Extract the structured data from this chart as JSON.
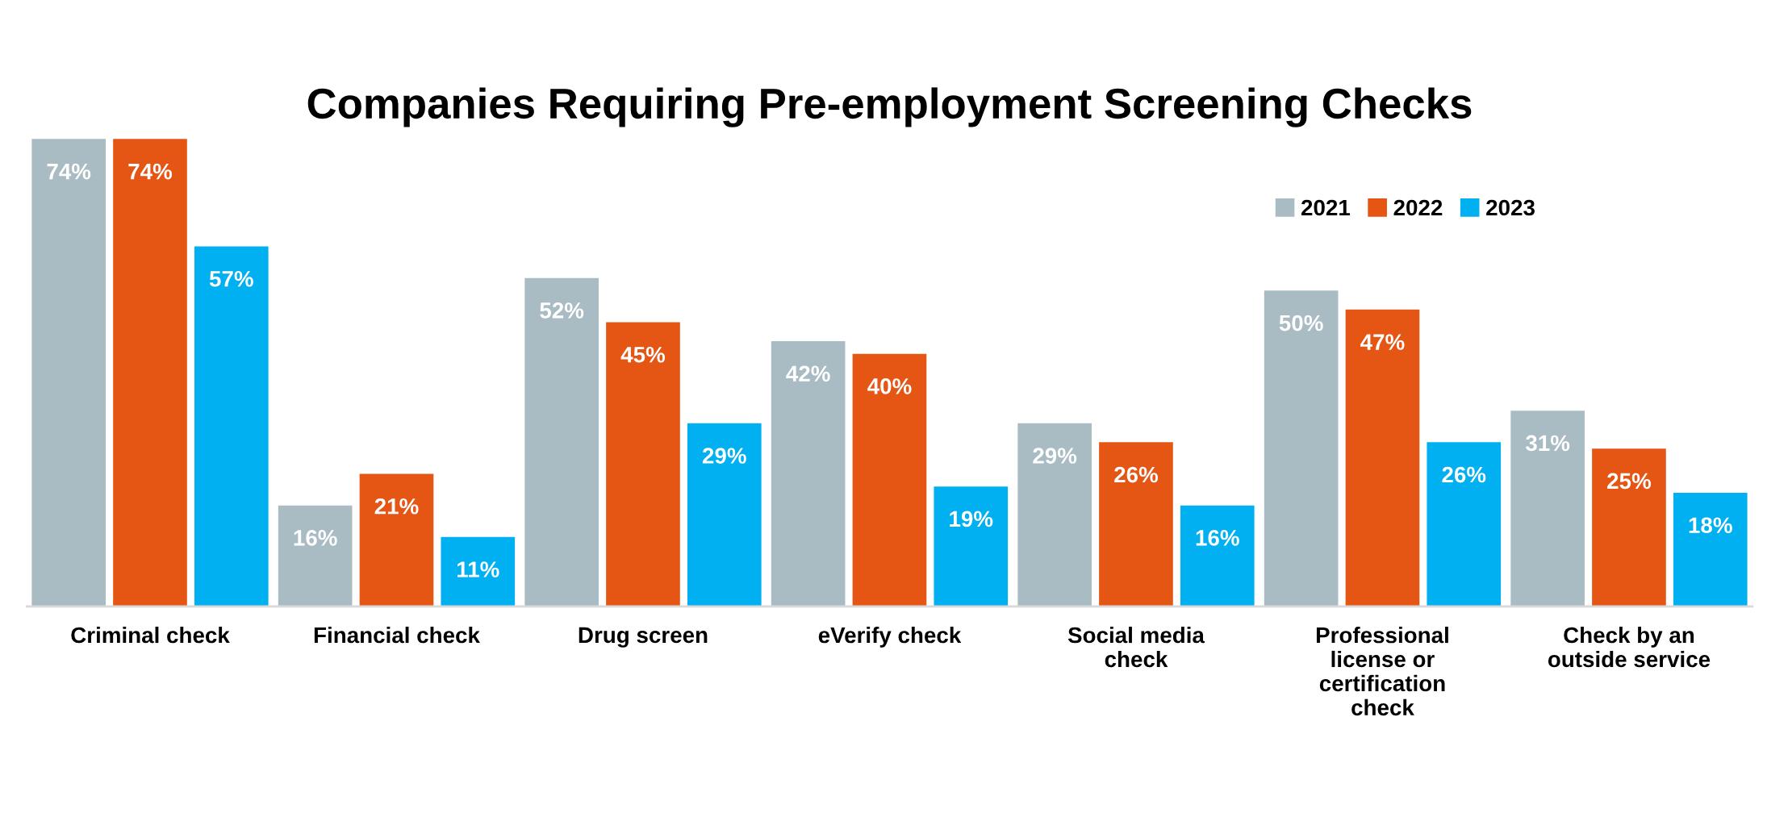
{
  "chart_data": {
    "type": "bar",
    "title": "Companies Requiring Pre-employment Screening Checks",
    "categories": [
      "Criminal check",
      "Financial check",
      "Drug screen",
      "eVerify check",
      "Social media\ncheck",
      "Professional\nlicense or\ncertification\ncheck",
      "Check by an\noutside service"
    ],
    "series": [
      {
        "name": "2021",
        "color": "#a9bcc3",
        "values": [
          74,
          16,
          52,
          42,
          29,
          50,
          31
        ],
        "value_labels": [
          "74%",
          "16%",
          "52%",
          "42%",
          "29%",
          "50%",
          "31%"
        ]
      },
      {
        "name": "2022",
        "color": "#e55513",
        "values": [
          74,
          21,
          45,
          40,
          26,
          47,
          25
        ],
        "value_labels": [
          "74%",
          "21%",
          "45%",
          "40%",
          "26%",
          "47%",
          "25%"
        ]
      },
      {
        "name": "2023",
        "color": "#00b0f0",
        "values": [
          57,
          11,
          29,
          19,
          16,
          26,
          18
        ],
        "value_labels": [
          "57%",
          "11%",
          "29%",
          "19%",
          "16%",
          "26%",
          "18%"
        ]
      }
    ],
    "legend": "top right",
    "grid": false
  }
}
